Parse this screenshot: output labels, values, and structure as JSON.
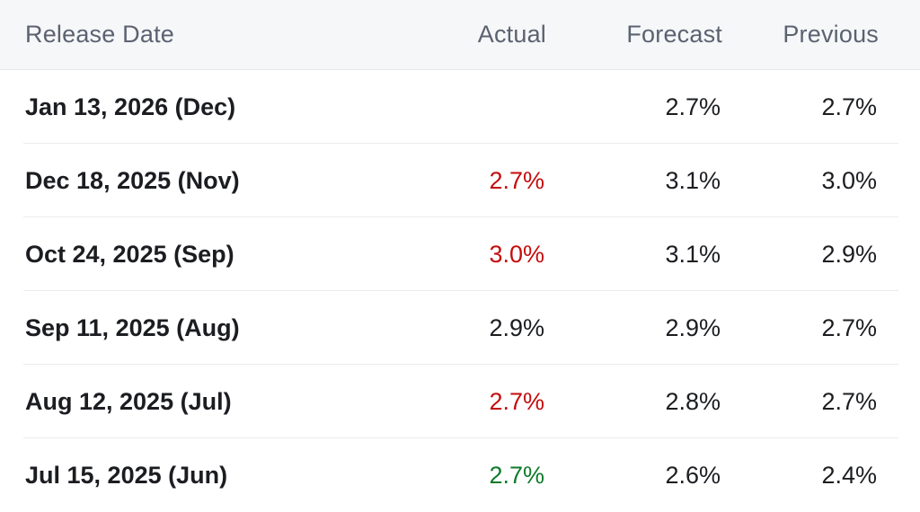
{
  "header": {
    "release_date": "Release Date",
    "actual": "Actual",
    "forecast": "Forecast",
    "previous": "Previous"
  },
  "colors": {
    "negative": "#c40d0d",
    "positive": "#0f7a2a",
    "neutral": "#1b1d21",
    "header_bg": "#f6f7f9",
    "header_text": "#5b6270"
  },
  "rows": [
    {
      "date": "Jan 13, 2026 (Dec)",
      "actual": "",
      "actual_state": "neutral",
      "forecast": "2.7%",
      "previous": "2.7%"
    },
    {
      "date": "Dec 18, 2025 (Nov)",
      "actual": "2.7%",
      "actual_state": "negative",
      "forecast": "3.1%",
      "previous": "3.0%"
    },
    {
      "date": "Oct 24, 2025 (Sep)",
      "actual": "3.0%",
      "actual_state": "negative",
      "forecast": "3.1%",
      "previous": "2.9%"
    },
    {
      "date": "Sep 11, 2025 (Aug)",
      "actual": "2.9%",
      "actual_state": "neutral",
      "forecast": "2.9%",
      "previous": "2.7%"
    },
    {
      "date": "Aug 12, 2025 (Jul)",
      "actual": "2.7%",
      "actual_state": "negative",
      "forecast": "2.8%",
      "previous": "2.7%"
    },
    {
      "date": "Jul 15, 2025 (Jun)",
      "actual": "2.7%",
      "actual_state": "positive",
      "forecast": "2.6%",
      "previous": "2.4%"
    }
  ]
}
